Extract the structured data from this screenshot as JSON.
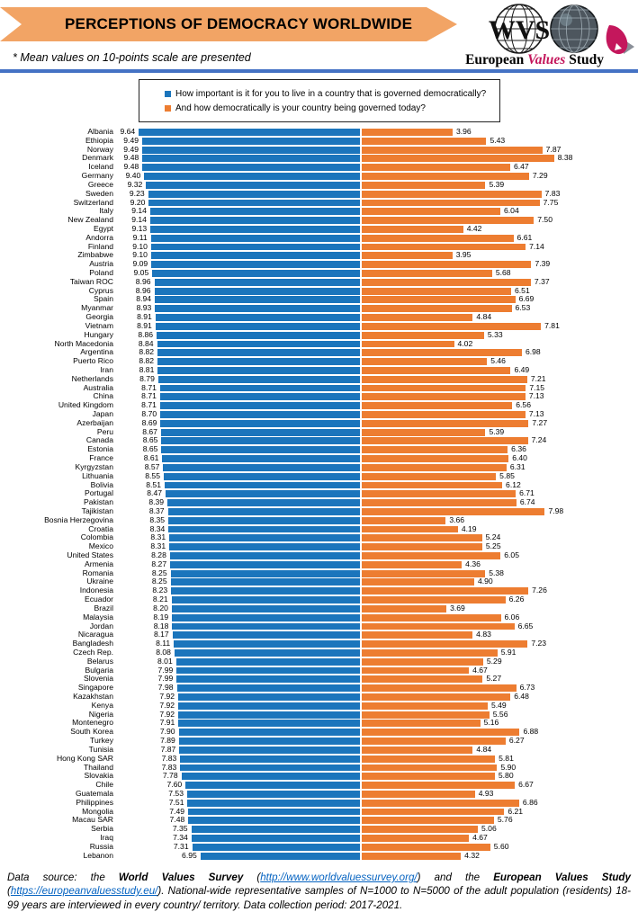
{
  "header": {
    "title": "PERCEPTIONS OF DEMOCRACY WORLDWIDE",
    "note": "* Mean values on 10-points scale are presented",
    "banner_color": "#F2A465",
    "divider_color": "#4472C4",
    "logos": {
      "wvs_text": "WVS",
      "evs_european": "European ",
      "evs_values": "Values",
      "evs_study": " Study",
      "evs_accent_color": "#C4175C"
    }
  },
  "legend": {
    "items": [
      {
        "label": "How important is it for you to live in a country that is governed democratically?",
        "color": "#1B75BC"
      },
      {
        "label": "And how democratically is your country being governed today?",
        "color": "#ED7D31"
      }
    ]
  },
  "chart_data": {
    "type": "bar",
    "orientation": "horizontal-diverging",
    "title": "PERCEPTIONS OF DEMOCRACY WORLDWIDE",
    "xlabel": "",
    "ylabel": "",
    "value_range": [
      0,
      10
    ],
    "grid": false,
    "legend_position": "top",
    "series": [
      {
        "name": "How important is it for you to live in a country that is governed democratically?",
        "color": "#1B75BC",
        "direction": "left",
        "key": "importance"
      },
      {
        "name": "And how democratically is your country being governed today?",
        "color": "#ED7D31",
        "direction": "right",
        "key": "governed"
      }
    ],
    "countries": [
      {
        "name": "Albania",
        "importance": 9.64,
        "governed": 3.96
      },
      {
        "name": "Ethiopia",
        "importance": 9.49,
        "governed": 5.43
      },
      {
        "name": "Norway",
        "importance": 9.49,
        "governed": 7.87
      },
      {
        "name": "Denmark",
        "importance": 9.48,
        "governed": 8.38
      },
      {
        "name": "Iceland",
        "importance": 9.48,
        "governed": 6.47
      },
      {
        "name": "Germany",
        "importance": 9.4,
        "governed": 7.29
      },
      {
        "name": "Greece",
        "importance": 9.32,
        "governed": 5.39
      },
      {
        "name": "Sweden",
        "importance": 9.23,
        "governed": 7.83
      },
      {
        "name": "Switzerland",
        "importance": 9.2,
        "governed": 7.75
      },
      {
        "name": "Italy",
        "importance": 9.14,
        "governed": 6.04
      },
      {
        "name": "New Zealand",
        "importance": 9.14,
        "governed": 7.5
      },
      {
        "name": "Egypt",
        "importance": 9.13,
        "governed": 4.42
      },
      {
        "name": "Andorra",
        "importance": 9.11,
        "governed": 6.61
      },
      {
        "name": "Finland",
        "importance": 9.1,
        "governed": 7.14
      },
      {
        "name": "Zimbabwe",
        "importance": 9.1,
        "governed": 3.95
      },
      {
        "name": "Austria",
        "importance": 9.09,
        "governed": 7.39
      },
      {
        "name": "Poland",
        "importance": 9.05,
        "governed": 5.68
      },
      {
        "name": "Taiwan ROC",
        "importance": 8.96,
        "governed": 7.37
      },
      {
        "name": "Cyprus",
        "importance": 8.96,
        "governed": 6.51
      },
      {
        "name": "Spain",
        "importance": 8.94,
        "governed": 6.69
      },
      {
        "name": "Myanmar",
        "importance": 8.93,
        "governed": 6.53
      },
      {
        "name": "Georgia",
        "importance": 8.91,
        "governed": 4.84
      },
      {
        "name": "Vietnam",
        "importance": 8.91,
        "governed": 7.81
      },
      {
        "name": "Hungary",
        "importance": 8.86,
        "governed": 5.33
      },
      {
        "name": "North Macedonia",
        "importance": 8.84,
        "governed": 4.02
      },
      {
        "name": "Argentina",
        "importance": 8.82,
        "governed": 6.98
      },
      {
        "name": "Puerto Rico",
        "importance": 8.82,
        "governed": 5.46
      },
      {
        "name": "Iran",
        "importance": 8.81,
        "governed": 6.49
      },
      {
        "name": "Netherlands",
        "importance": 8.79,
        "governed": 7.21
      },
      {
        "name": "Australia",
        "importance": 8.71,
        "governed": 7.15
      },
      {
        "name": "China",
        "importance": 8.71,
        "governed": 7.13
      },
      {
        "name": "United Kingdom",
        "importance": 8.71,
        "governed": 6.56
      },
      {
        "name": "Japan",
        "importance": 8.7,
        "governed": 7.13
      },
      {
        "name": "Azerbaijan",
        "importance": 8.69,
        "governed": 7.27
      },
      {
        "name": "Peru",
        "importance": 8.67,
        "governed": 5.39
      },
      {
        "name": "Canada",
        "importance": 8.65,
        "governed": 7.24
      },
      {
        "name": "Estonia",
        "importance": 8.65,
        "governed": 6.36
      },
      {
        "name": "France",
        "importance": 8.61,
        "governed": 6.4
      },
      {
        "name": "Kyrgyzstan",
        "importance": 8.57,
        "governed": 6.31
      },
      {
        "name": "Lithuania",
        "importance": 8.55,
        "governed": 5.85
      },
      {
        "name": "Bolivia",
        "importance": 8.51,
        "governed": 6.12
      },
      {
        "name": "Portugal",
        "importance": 8.47,
        "governed": 6.71
      },
      {
        "name": "Pakistan",
        "importance": 8.39,
        "governed": 6.74
      },
      {
        "name": "Tajikistan",
        "importance": 8.37,
        "governed": 7.98
      },
      {
        "name": "Bosnia Herzegovina",
        "importance": 8.35,
        "governed": 3.66
      },
      {
        "name": "Croatia",
        "importance": 8.34,
        "governed": 4.19
      },
      {
        "name": "Colombia",
        "importance": 8.31,
        "governed": 5.24
      },
      {
        "name": "Mexico",
        "importance": 8.31,
        "governed": 5.25
      },
      {
        "name": "United States",
        "importance": 8.28,
        "governed": 6.05
      },
      {
        "name": "Armenia",
        "importance": 8.27,
        "governed": 4.36
      },
      {
        "name": "Romania",
        "importance": 8.25,
        "governed": 5.38
      },
      {
        "name": "Ukraine",
        "importance": 8.25,
        "governed": 4.9
      },
      {
        "name": "Indonesia",
        "importance": 8.23,
        "governed": 7.26
      },
      {
        "name": "Ecuador",
        "importance": 8.21,
        "governed": 6.26
      },
      {
        "name": "Brazil",
        "importance": 8.2,
        "governed": 3.69
      },
      {
        "name": "Malaysia",
        "importance": 8.19,
        "governed": 6.06
      },
      {
        "name": "Jordan",
        "importance": 8.18,
        "governed": 6.65
      },
      {
        "name": "Nicaragua",
        "importance": 8.17,
        "governed": 4.83
      },
      {
        "name": "Bangladesh",
        "importance": 8.11,
        "governed": 7.23
      },
      {
        "name": "Czech Rep.",
        "importance": 8.08,
        "governed": 5.91
      },
      {
        "name": "Belarus",
        "importance": 8.01,
        "governed": 5.29
      },
      {
        "name": "Bulgaria",
        "importance": 7.99,
        "governed": 4.67
      },
      {
        "name": "Slovenia",
        "importance": 7.99,
        "governed": 5.27
      },
      {
        "name": "Singapore",
        "importance": 7.98,
        "governed": 6.73
      },
      {
        "name": "Kazakhstan",
        "importance": 7.92,
        "governed": 6.48
      },
      {
        "name": "Kenya",
        "importance": 7.92,
        "governed": 5.49
      },
      {
        "name": "Nigeria",
        "importance": 7.92,
        "governed": 5.56
      },
      {
        "name": "Montenegro",
        "importance": 7.91,
        "governed": 5.16
      },
      {
        "name": "South Korea",
        "importance": 7.9,
        "governed": 6.88
      },
      {
        "name": "Turkey",
        "importance": 7.89,
        "governed": 6.27
      },
      {
        "name": "Tunisia",
        "importance": 7.87,
        "governed": 4.84
      },
      {
        "name": "Hong Kong SAR",
        "importance": 7.83,
        "governed": 5.81
      },
      {
        "name": "Thailand",
        "importance": 7.83,
        "governed": 5.9
      },
      {
        "name": "Slovakia",
        "importance": 7.78,
        "governed": 5.8
      },
      {
        "name": "Chile",
        "importance": 7.6,
        "governed": 6.67
      },
      {
        "name": "Guatemala",
        "importance": 7.53,
        "governed": 4.93
      },
      {
        "name": "Philippines",
        "importance": 7.51,
        "governed": 6.86
      },
      {
        "name": "Mongolia",
        "importance": 7.49,
        "governed": 6.21
      },
      {
        "name": "Macau SAR",
        "importance": 7.48,
        "governed": 5.76
      },
      {
        "name": "Serbia",
        "importance": 7.35,
        "governed": 5.06
      },
      {
        "name": "Iraq",
        "importance": 7.34,
        "governed": 4.67
      },
      {
        "name": "Russia",
        "importance": 7.31,
        "governed": 5.6
      },
      {
        "name": "Lebanon",
        "importance": 6.95,
        "governed": 4.32
      }
    ]
  },
  "footer": {
    "p1": "Data source: the ",
    "b1": "World Values Survey",
    "p2": " (",
    "link1": "http://www.worldvaluessurvey.org/",
    "p3": ") and the ",
    "b2": "European Values Study",
    "p4": " (",
    "link2": "https://europeanvaluesstudy.eu/",
    "p5": "). National-wide representative samples of N=1000 to N=5000 of the adult population (residents) 18-99 years are interviewed in every country/ territory. Data collection period: 2017-2021."
  }
}
